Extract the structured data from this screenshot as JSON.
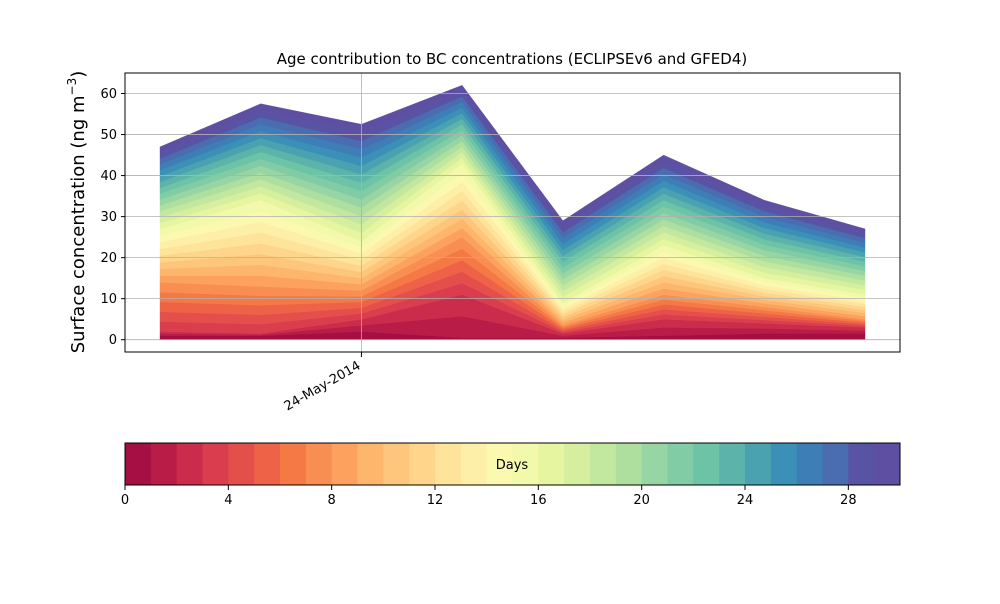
{
  "chart_data": [
    {
      "type": "area",
      "stacked": true,
      "title": "Age contribution to BC concentrations (ECLIPSEv6 and GFED4)",
      "ylabel": "Surface concentration (ng m⁻³)",
      "xlabel": "",
      "xtick_labels": [
        "24-May-2014"
      ],
      "ylim": [
        -3,
        65
      ],
      "yticks": [
        0,
        10,
        20,
        30,
        40,
        50,
        60
      ],
      "grid": true,
      "legend": "none",
      "n_layers": 30,
      "layer_units": "Days",
      "x": [
        "21-May-2014 18:00",
        "23-May-2014 00:00",
        "24-May-2014 06:00",
        "25-May-2014 12:00",
        "26-May-2014 18:00",
        "28-May-2014 00:00",
        "29-May-2014 06:00",
        "30-May-2014 12:00"
      ],
      "total": [
        47,
        57.5,
        52.5,
        62,
        29,
        45,
        34,
        27
      ],
      "cumulative_reference": {
        "layers": [
          1,
          3,
          8,
          16,
          30
        ],
        "values": [
          [
            1,
            2,
            14,
            27,
            47
          ],
          [
            1,
            1.5,
            13,
            34,
            57.5
          ],
          [
            2,
            5,
            12,
            24,
            52.5
          ],
          [
            0.5,
            11,
            25,
            43,
            62
          ],
          [
            0.5,
            1.5,
            3.5,
            9,
            29
          ],
          [
            1,
            5,
            11,
            23,
            45
          ],
          [
            1.5,
            4,
            8,
            15,
            34
          ],
          [
            1.5,
            3,
            5,
            11,
            27
          ]
        ]
      }
    },
    {
      "type": "colorbar",
      "label": "Days",
      "range": [
        0,
        30
      ],
      "ticks": [
        0,
        4,
        8,
        12,
        16,
        20,
        24,
        28
      ],
      "colors": [
        "#a50f43",
        "#b91c47",
        "#cb2c4b",
        "#da3d4e",
        "#e54f4b",
        "#ee6247",
        "#f47945",
        "#f98e52",
        "#fca25e",
        "#fdb66c",
        "#fec67c",
        "#fed58b",
        "#fee39a",
        "#feefa8",
        "#fbf8b0",
        "#f3f9ab",
        "#e6f59f",
        "#d5ef9f",
        "#c2e79f",
        "#aedf9f",
        "#98d5a4",
        "#82cca5",
        "#6dc3a5",
        "#5bb3aa",
        "#4aa2b0",
        "#3a90b6",
        "#3d7eb7",
        "#4a6cb0",
        "#5853a5",
        "#5e4fa2"
      ]
    }
  ]
}
